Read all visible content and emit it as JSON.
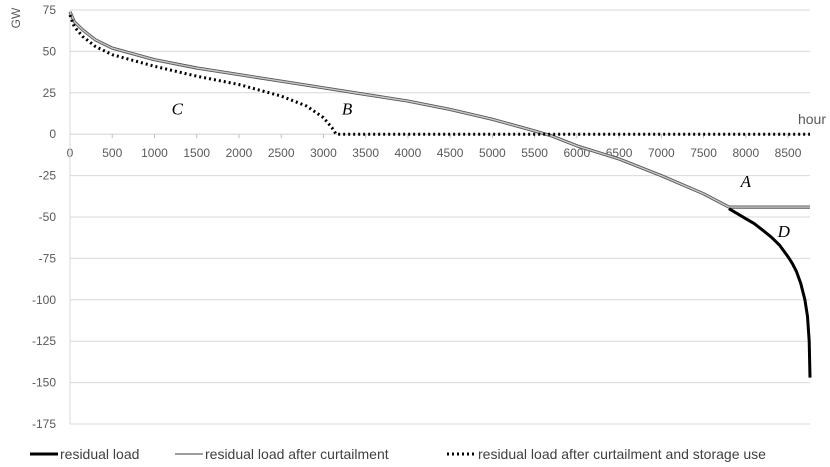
{
  "chart_data": {
    "type": "line",
    "xlabel": "hour",
    "ylabel": "GW",
    "xlim": [
      0,
      8760
    ],
    "ylim": [
      -175,
      75
    ],
    "xticks": [
      0,
      500,
      1000,
      1500,
      2000,
      2500,
      3000,
      3500,
      4000,
      4500,
      5000,
      5500,
      6000,
      6500,
      7000,
      7500,
      8000,
      8500
    ],
    "yticks": [
      75,
      50,
      25,
      0,
      -25,
      -50,
      -75,
      -100,
      -125,
      -150,
      -175
    ],
    "grid": "horizontal",
    "legend": "bottom",
    "annotations": [
      {
        "text": "A",
        "x": 8000,
        "y": -32
      },
      {
        "text": "B",
        "x": 3280,
        "y": 12
      },
      {
        "text": "C",
        "x": 1270,
        "y": 12
      },
      {
        "text": "D",
        "x": 8450,
        "y": -62
      }
    ],
    "series": [
      {
        "name": "residual load",
        "color": "#000000",
        "x": [
          7800,
          7900,
          8000,
          8100,
          8200,
          8300,
          8400,
          8500,
          8550,
          8600,
          8650,
          8700,
          8730,
          8750,
          8760
        ],
        "y": [
          -45,
          -48,
          -51,
          -54,
          -58,
          -62,
          -67,
          -74,
          -78,
          -83,
          -90,
          -100,
          -110,
          -125,
          -147
        ]
      },
      {
        "name": "residual load after curtailment",
        "color": "#9e9e9e",
        "x": [
          0,
          50,
          150,
          300,
          500,
          1000,
          1500,
          2000,
          2500,
          3000,
          3500,
          4000,
          4500,
          5000,
          5500,
          5700,
          6000,
          6500,
          7000,
          7500,
          7800,
          8000,
          8500,
          8760
        ],
        "y": [
          74,
          68,
          63,
          57,
          52,
          45,
          40,
          36,
          32,
          28,
          24,
          20,
          15,
          9,
          2,
          -1,
          -7,
          -15,
          -25,
          -36,
          -44,
          -44,
          -44,
          -44
        ]
      },
      {
        "name": "residual load after curtailment and storage use",
        "color": "#000000",
        "x": [
          0,
          50,
          150,
          300,
          500,
          1000,
          1500,
          2000,
          2500,
          2800,
          3000,
          3100,
          3150,
          3200,
          4000,
          5000,
          6000,
          7000,
          8000,
          8760
        ],
        "y": [
          72,
          65,
          59,
          53,
          48,
          41,
          35,
          30,
          23,
          17,
          10,
          4,
          0,
          0,
          0,
          0,
          0,
          0,
          0,
          0
        ]
      }
    ]
  }
}
